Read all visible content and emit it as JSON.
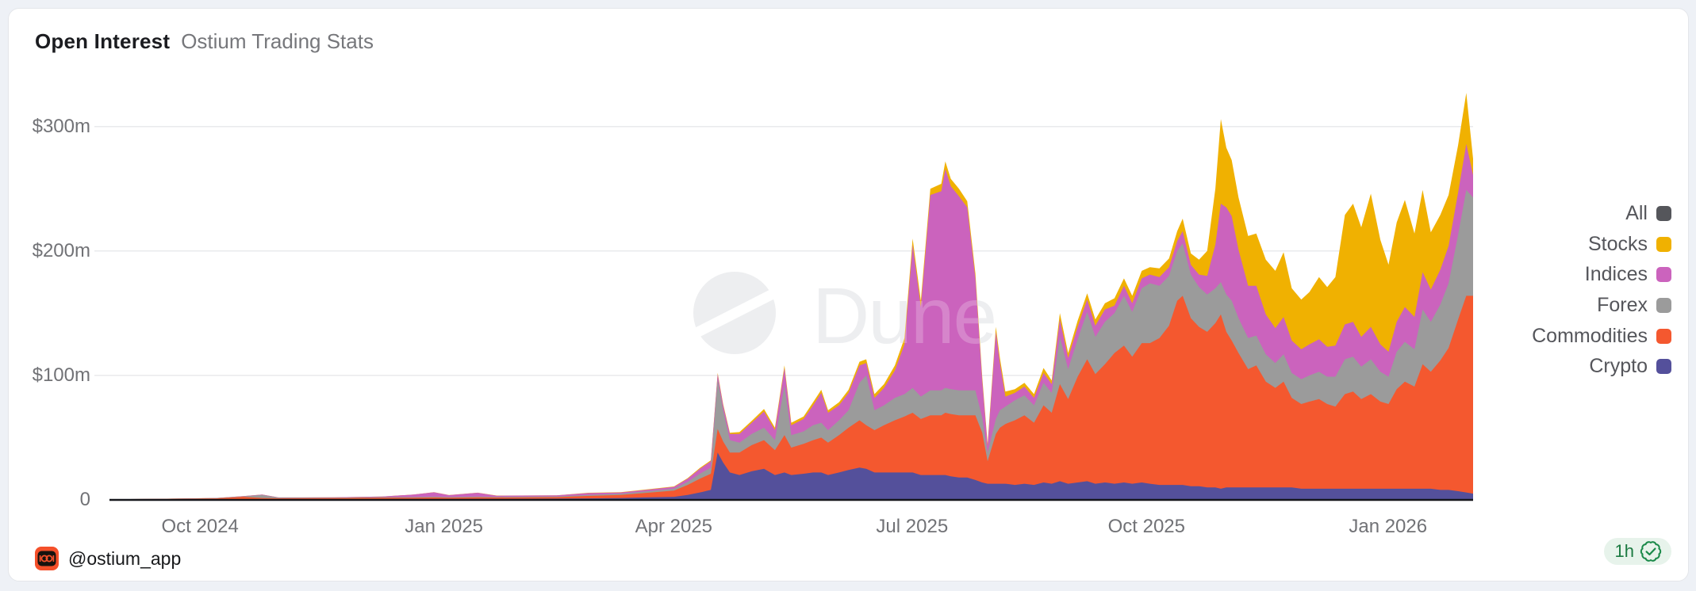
{
  "header": {
    "title": "Open Interest",
    "subtitle": "Ostium Trading Stats"
  },
  "watermark": {
    "label": "Dune"
  },
  "footer": {
    "logo_icon": "ostium-logo-icon",
    "handle": "@ostium_app",
    "badge": {
      "label": "1h",
      "icon": "verified-seal-icon",
      "text_color": "#1B7A41",
      "bg_color": "#E7F3EB"
    }
  },
  "chart_data": {
    "type": "area",
    "stacked": true,
    "title": "Open Interest",
    "unit": "$m",
    "grid": "horizontal",
    "legend_position": "right",
    "ylim": [
      0,
      345
    ],
    "y_ticks": [
      {
        "label": "$300m",
        "value": 300
      },
      {
        "label": "$200m",
        "value": 200
      },
      {
        "label": "$100m",
        "value": 100
      },
      {
        "label": "0",
        "value": 0
      }
    ],
    "x_ticks": [
      {
        "label": "Oct 2024",
        "f": 0.0664
      },
      {
        "label": "Jan 2025",
        "f": 0.2453
      },
      {
        "label": "Apr 2025",
        "f": 0.4138
      },
      {
        "label": "Jul 2025",
        "f": 0.5886
      },
      {
        "label": "Oct 2025",
        "f": 0.7605
      },
      {
        "label": "Jan 2026",
        "f": 0.9376
      }
    ],
    "legend": [
      {
        "label": "All",
        "color": "#55565B"
      },
      {
        "label": "Stocks",
        "color": "#F0B101"
      },
      {
        "label": "Indices",
        "color": "#CB63BD"
      },
      {
        "label": "Forex",
        "color": "#9B9B9B"
      },
      {
        "label": "Commodities",
        "color": "#F4582F"
      },
      {
        "label": "Crypto",
        "color": "#54509B"
      }
    ],
    "series_meta": [
      {
        "name": "Crypto",
        "color": "#54509B"
      },
      {
        "name": "Commodities",
        "color": "#F4582F"
      },
      {
        "name": "Forex",
        "color": "#9B9B9B"
      },
      {
        "name": "Indices",
        "color": "#CB63BD"
      },
      {
        "name": "Stocks",
        "color": "#F0B101"
      }
    ],
    "columns": [
      "f",
      "Crypto",
      "Commodities",
      "Forex",
      "Indices",
      "Stocks"
    ],
    "rows": [
      [
        0.0,
        0.2,
        0.3,
        0,
        0,
        0
      ],
      [
        0.037,
        0.3,
        0.5,
        0.1,
        0,
        0
      ],
      [
        0.078,
        0.4,
        0.8,
        0.2,
        0.1,
        0
      ],
      [
        0.098,
        0.5,
        2,
        0.3,
        0.2,
        0
      ],
      [
        0.112,
        0.5,
        1,
        2.5,
        0.3,
        0
      ],
      [
        0.124,
        0.5,
        0.8,
        0.5,
        0.2,
        0
      ],
      [
        0.165,
        0.6,
        0.8,
        0.4,
        0.3,
        0
      ],
      [
        0.2,
        0.7,
        1,
        0.5,
        0.5,
        0
      ],
      [
        0.223,
        0.8,
        1,
        0.5,
        2,
        0
      ],
      [
        0.238,
        0.8,
        1.2,
        0.6,
        3.5,
        0.1
      ],
      [
        0.249,
        0.8,
        1,
        0.5,
        1.5,
        0.1
      ],
      [
        0.27,
        0.9,
        1.2,
        0.6,
        3,
        0.1
      ],
      [
        0.284,
        0.9,
        1,
        0.5,
        1,
        0.1
      ],
      [
        0.328,
        1,
        1.2,
        0.6,
        0.8,
        0.1
      ],
      [
        0.351,
        1.2,
        2,
        0.8,
        1.5,
        0.2
      ],
      [
        0.375,
        1.5,
        2.5,
        1,
        1,
        0.2
      ],
      [
        0.392,
        2,
        3.5,
        1.2,
        1.2,
        0.3
      ],
      [
        0.414,
        2.5,
        5,
        1.5,
        1.5,
        0.3
      ],
      [
        0.424,
        4,
        8,
        2.5,
        2.5,
        0.5
      ],
      [
        0.433,
        6,
        11,
        4,
        4,
        0.7
      ],
      [
        0.441,
        8,
        13,
        5,
        5,
        0.8
      ],
      [
        0.446,
        38,
        19,
        40,
        4,
        1
      ],
      [
        0.45,
        30,
        17,
        25,
        4,
        1
      ],
      [
        0.455,
        22,
        16,
        10,
        5,
        1
      ],
      [
        0.462,
        20,
        18,
        8,
        7,
        1.5
      ],
      [
        0.471,
        23,
        21,
        9,
        9,
        1.5
      ],
      [
        0.48,
        25,
        23,
        10,
        13,
        2
      ],
      [
        0.488,
        20,
        20,
        8,
        8,
        2
      ],
      [
        0.495,
        22,
        30,
        40,
        14,
        2
      ],
      [
        0.5,
        20,
        22,
        10,
        8,
        2
      ],
      [
        0.509,
        21,
        24,
        10,
        10,
        2
      ],
      [
        0.516,
        22,
        26,
        12,
        16,
        2.5
      ],
      [
        0.522,
        22,
        28,
        12,
        24,
        2.5
      ],
      [
        0.527,
        20,
        26,
        10,
        14,
        2
      ],
      [
        0.535,
        22,
        30,
        12,
        12,
        2.5
      ],
      [
        0.542,
        24,
        34,
        14,
        14,
        2.5
      ],
      [
        0.55,
        26,
        38,
        30,
        14,
        3
      ],
      [
        0.555,
        25,
        35,
        40,
        10,
        3
      ],
      [
        0.561,
        22,
        34,
        16,
        10,
        3
      ],
      [
        0.568,
        22,
        38,
        16,
        14,
        3
      ],
      [
        0.576,
        22,
        42,
        18,
        22,
        4
      ],
      [
        0.583,
        22,
        45,
        18,
        40,
        5
      ],
      [
        0.589,
        22,
        48,
        20,
        115,
        5
      ],
      [
        0.595,
        20,
        45,
        18,
        72,
        5
      ],
      [
        0.602,
        20,
        48,
        20,
        157,
        5
      ],
      [
        0.61,
        20,
        48,
        20,
        160,
        6
      ],
      [
        0.613,
        20,
        50,
        20,
        176,
        6
      ],
      [
        0.617,
        19,
        50,
        20,
        163,
        6
      ],
      [
        0.623,
        18,
        50,
        20,
        156,
        6
      ],
      [
        0.629,
        18,
        50,
        20,
        147,
        5
      ],
      [
        0.635,
        16,
        52,
        20,
        90,
        4
      ],
      [
        0.64,
        14,
        40,
        12,
        30,
        3
      ],
      [
        0.644,
        13,
        18,
        7,
        5,
        2
      ],
      [
        0.65,
        13,
        40,
        12,
        70,
        4
      ],
      [
        0.653,
        13,
        45,
        14,
        38,
        4
      ],
      [
        0.657,
        13,
        48,
        14,
        8,
        4
      ],
      [
        0.664,
        12,
        52,
        16,
        6,
        3
      ],
      [
        0.671,
        13,
        55,
        16,
        7,
        3
      ],
      [
        0.678,
        12,
        50,
        14,
        6,
        3
      ],
      [
        0.685,
        14,
        62,
        18,
        8,
        4
      ],
      [
        0.691,
        13,
        57,
        16,
        7,
        3
      ],
      [
        0.697,
        15,
        78,
        38,
        14,
        5
      ],
      [
        0.703,
        13,
        68,
        24,
        9,
        4
      ],
      [
        0.71,
        14,
        85,
        30,
        10,
        5
      ],
      [
        0.717,
        15,
        98,
        38,
        10,
        5
      ],
      [
        0.723,
        13,
        88,
        30,
        9,
        5
      ],
      [
        0.73,
        14,
        95,
        34,
        10,
        5
      ],
      [
        0.737,
        13,
        105,
        32,
        6,
        6
      ],
      [
        0.744,
        14,
        110,
        40,
        8,
        6
      ],
      [
        0.75,
        13,
        102,
        36,
        7,
        6
      ],
      [
        0.757,
        14,
        112,
        44,
        8,
        6
      ],
      [
        0.763,
        13,
        113,
        48,
        7,
        6
      ],
      [
        0.77,
        12,
        118,
        42,
        7,
        7
      ],
      [
        0.777,
        12,
        128,
        40,
        7,
        7
      ],
      [
        0.783,
        12,
        148,
        40,
        8,
        8
      ],
      [
        0.787,
        12,
        152,
        42,
        10,
        10
      ],
      [
        0.793,
        11,
        135,
        35,
        8,
        9
      ],
      [
        0.799,
        11,
        128,
        32,
        10,
        12
      ],
      [
        0.805,
        10,
        125,
        30,
        15,
        20
      ],
      [
        0.811,
        10,
        132,
        28,
        35,
        45
      ],
      [
        0.815,
        9,
        140,
        26,
        63,
        68
      ],
      [
        0.819,
        10,
        125,
        30,
        70,
        48
      ],
      [
        0.823,
        10,
        118,
        32,
        68,
        45
      ],
      [
        0.828,
        10,
        108,
        28,
        55,
        42
      ],
      [
        0.835,
        10,
        95,
        25,
        42,
        40
      ],
      [
        0.841,
        10,
        98,
        24,
        40,
        42
      ],
      [
        0.848,
        10,
        85,
        22,
        32,
        44
      ],
      [
        0.855,
        10,
        80,
        20,
        28,
        46
      ],
      [
        0.861,
        10,
        85,
        22,
        30,
        52
      ],
      [
        0.867,
        10,
        72,
        20,
        26,
        42
      ],
      [
        0.874,
        9,
        68,
        20,
        24,
        40
      ],
      [
        0.88,
        9,
        70,
        21,
        25,
        42
      ],
      [
        0.887,
        9,
        72,
        22,
        26,
        50
      ],
      [
        0.893,
        9,
        68,
        22,
        24,
        48
      ],
      [
        0.899,
        9,
        66,
        24,
        25,
        55
      ],
      [
        0.906,
        9,
        76,
        28,
        28,
        88
      ],
      [
        0.912,
        9,
        78,
        28,
        28,
        95
      ],
      [
        0.918,
        9,
        72,
        26,
        24,
        88
      ],
      [
        0.925,
        9,
        76,
        28,
        26,
        107
      ],
      [
        0.932,
        9,
        70,
        24,
        22,
        84
      ],
      [
        0.938,
        9,
        68,
        22,
        20,
        70
      ],
      [
        0.944,
        9,
        80,
        30,
        24,
        80
      ],
      [
        0.95,
        9,
        86,
        32,
        28,
        86
      ],
      [
        0.957,
        9,
        82,
        30,
        26,
        67
      ],
      [
        0.963,
        9,
        100,
        44,
        30,
        66
      ],
      [
        0.969,
        9,
        94,
        40,
        26,
        46
      ],
      [
        0.976,
        8,
        104,
        45,
        28,
        44
      ],
      [
        0.982,
        8,
        114,
        52,
        30,
        41
      ],
      [
        0.989,
        7,
        138,
        68,
        34,
        38
      ],
      [
        0.995,
        6,
        158,
        85,
        37,
        41
      ],
      [
        1.0,
        5,
        159,
        79,
        18,
        13
      ]
    ]
  }
}
